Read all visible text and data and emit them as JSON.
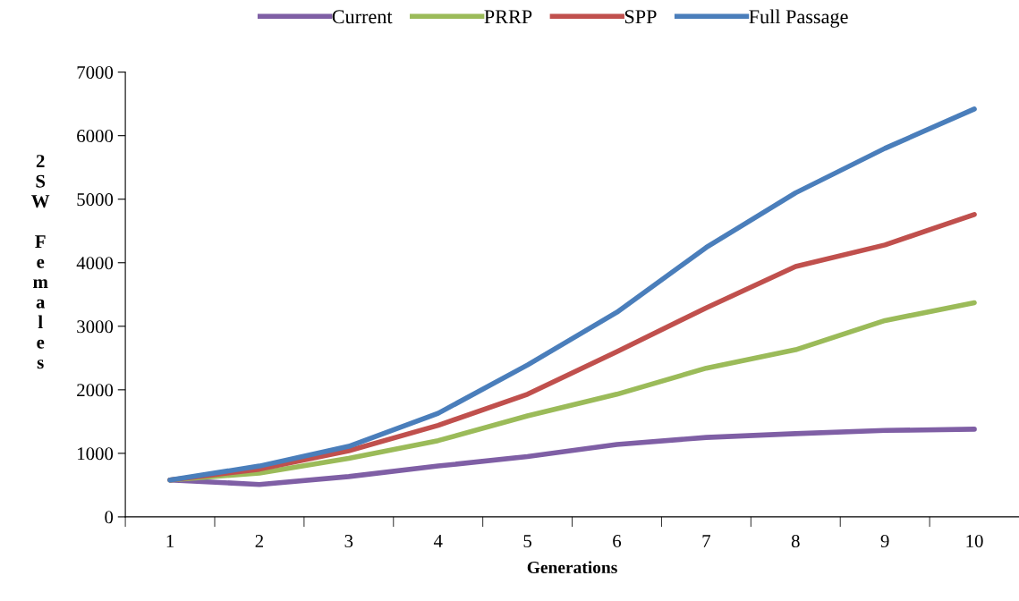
{
  "chart_data": {
    "type": "line",
    "xlabel": "Generations",
    "ylabel": "2SW Females",
    "categories": [
      "1",
      "2",
      "3",
      "4",
      "5",
      "6",
      "7",
      "8",
      "9",
      "10"
    ],
    "series": [
      {
        "name": "Current",
        "color": "#7f5fa5",
        "values": [
          580,
          510,
          634,
          800,
          950,
          1140,
          1250,
          1310,
          1360,
          1380
        ]
      },
      {
        "name": "PRRP",
        "color": "#9bbb59",
        "values": [
          580,
          690,
          920,
          1200,
          1590,
          1930,
          2340,
          2630,
          3090,
          3370
        ]
      },
      {
        "name": "SPP",
        "color": "#c0504d",
        "values": [
          580,
          750,
          1040,
          1440,
          1930,
          2600,
          3290,
          3940,
          4280,
          4760
        ]
      },
      {
        "name": "Full Passage",
        "color": "#4a7ebb",
        "values": [
          580,
          800,
          1110,
          1630,
          2390,
          3220,
          4240,
          5100,
          5800,
          6420
        ]
      }
    ],
    "ylim": [
      0,
      7000
    ],
    "yticks": [
      0,
      1000,
      2000,
      3000,
      4000,
      5000,
      6000,
      7000
    ],
    "grid": false,
    "legend": "top",
    "marker": "none",
    "line_style": "solid"
  }
}
